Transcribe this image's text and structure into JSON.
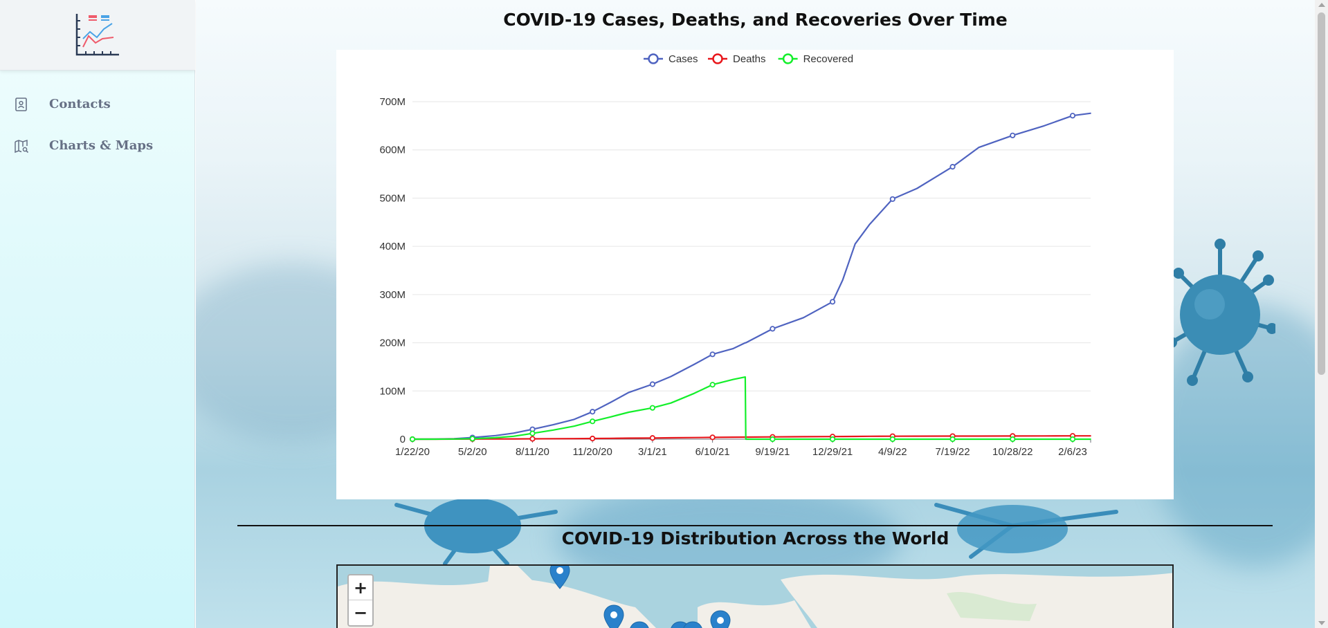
{
  "sidebar": {
    "logo_icon": "line-chart-logo-icon",
    "items": [
      {
        "label": "Contacts",
        "icon": "contact-book-icon"
      },
      {
        "label": "Charts & Maps",
        "icon": "map-search-icon"
      }
    ]
  },
  "main": {
    "chart_section_title": "COVID-19 Cases, Deaths, and Recoveries Over Time",
    "map_section_title": "COVID-19 Distribution Across the World"
  },
  "map": {
    "zoom_in_label": "+",
    "zoom_out_label": "−"
  },
  "colors": {
    "cases": "#4f63c0",
    "deaths": "#e8161b",
    "recovered": "#13ef2a",
    "map_water": "#aad3df",
    "marker": "#2a81cb"
  },
  "chart_data": {
    "type": "line",
    "title": "",
    "xlabel": "",
    "ylabel": "",
    "legend_position": "top-center",
    "grid": true,
    "ylim": [
      0,
      700000000
    ],
    "yticks": [
      "0",
      "100M",
      "200M",
      "300M",
      "400M",
      "500M",
      "600M",
      "700M"
    ],
    "ytick_values": [
      0,
      100000000,
      200000000,
      300000000,
      400000000,
      500000000,
      600000000,
      700000000
    ],
    "xticks": [
      "1/22/20",
      "5/2/20",
      "8/11/20",
      "11/20/20",
      "3/1/21",
      "6/10/21",
      "9/19/21",
      "12/29/21",
      "4/9/22",
      "7/19/22",
      "10/28/22",
      "2/6/23"
    ],
    "x": [
      "1/22/20",
      "3/1/20",
      "4/1/20",
      "5/2/20",
      "6/10/20",
      "7/10/20",
      "8/11/20",
      "9/15/20",
      "10/20/20",
      "11/20/20",
      "12/20/20",
      "1/20/21",
      "3/1/21",
      "4/1/21",
      "5/10/21",
      "6/10/21",
      "7/15/21",
      "8/4/21",
      "8/5/21",
      "9/19/21",
      "11/10/21",
      "12/29/21",
      "1/15/22",
      "2/5/22",
      "3/1/22",
      "4/9/22",
      "5/20/22",
      "7/19/22",
      "9/1/22",
      "10/28/22",
      "12/20/22",
      "2/6/23",
      "3/9/23"
    ],
    "series": [
      {
        "name": "Cases",
        "values": [
          0,
          0.1,
          1,
          3.5,
          7.5,
          12.5,
          20.5,
          30,
          41,
          57,
          76,
          97,
          114,
          130,
          155,
          176,
          188,
          200,
          200,
          229,
          252,
          285,
          330,
          405,
          445,
          498,
          520,
          565,
          605,
          630,
          650,
          671,
          676
        ]
      },
      {
        "name": "Deaths",
        "values": [
          0,
          0,
          0.1,
          0.25,
          0.4,
          0.55,
          0.75,
          0.95,
          1.2,
          1.4,
          1.7,
          2.1,
          2.5,
          2.9,
          3.3,
          3.8,
          4.1,
          4.3,
          4.3,
          4.7,
          5.1,
          5.4,
          5.6,
          5.8,
          6.0,
          6.2,
          6.3,
          6.4,
          6.5,
          6.6,
          6.7,
          6.85,
          6.9
        ]
      },
      {
        "name": "Recovered",
        "values": [
          0,
          0,
          0.3,
          1,
          3,
          6,
          12,
          19,
          27,
          37,
          46,
          56,
          65,
          75,
          95,
          113,
          124,
          129,
          0,
          0,
          0,
          0,
          0,
          0,
          0,
          0,
          0,
          0,
          0,
          0,
          0,
          0,
          0
        ]
      }
    ],
    "y_unit_multiplier": 1000000
  }
}
